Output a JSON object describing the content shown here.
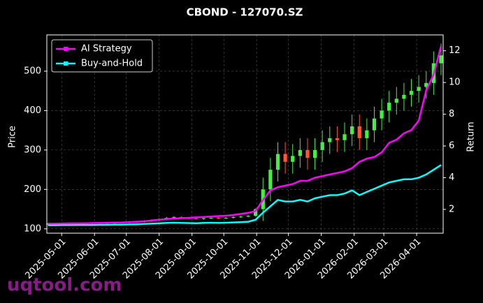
{
  "chart_data": {
    "type": "candlestick",
    "title": "CBOND - 127070.SZ",
    "ylabel": "Price",
    "y2label": "Return",
    "watermark": "uqtool.com",
    "x": [
      "2025-04-18",
      "2025-04-25",
      "2025-05-02",
      "2025-05-09",
      "2025-05-16",
      "2025-05-23",
      "2025-05-30",
      "2025-06-06",
      "2025-06-13",
      "2025-06-20",
      "2025-06-27",
      "2025-07-04",
      "2025-07-11",
      "2025-07-18",
      "2025-07-25",
      "2025-08-01",
      "2025-08-08",
      "2025-08-15",
      "2025-08-22",
      "2025-08-29",
      "2025-09-05",
      "2025-09-12",
      "2025-09-19",
      "2025-09-26",
      "2025-10-03",
      "2025-10-10",
      "2025-10-17",
      "2025-10-24",
      "2025-10-31",
      "2025-11-07",
      "2025-11-14",
      "2025-11-21",
      "2025-11-28",
      "2025-12-05",
      "2025-12-12",
      "2025-12-19",
      "2025-12-26",
      "2026-01-02",
      "2026-01-09",
      "2026-01-16",
      "2026-01-23",
      "2026-01-30",
      "2026-02-06",
      "2026-02-13",
      "2026-02-20",
      "2026-02-27",
      "2026-03-06",
      "2026-03-13",
      "2026-03-20",
      "2026-03-27",
      "2026-04-03",
      "2026-04-10",
      "2026-04-17",
      "2026-04-24"
    ],
    "open": [
      112,
      113,
      113,
      114,
      114,
      114,
      114,
      115,
      115,
      115,
      116,
      116,
      117,
      118,
      120,
      122,
      125,
      128,
      130,
      127,
      126,
      125,
      127,
      128,
      127,
      128,
      130,
      131,
      133,
      150,
      200,
      250,
      290,
      270,
      285,
      300,
      280,
      300,
      320,
      330,
      325,
      340,
      360,
      330,
      350,
      380,
      400,
      420,
      430,
      440,
      450,
      460,
      470,
      520
    ],
    "high": [
      115,
      115,
      116,
      116,
      116,
      116,
      117,
      117,
      117,
      118,
      118,
      119,
      120,
      122,
      124,
      127,
      130,
      132,
      132,
      129,
      128,
      129,
      130,
      130,
      130,
      132,
      133,
      135,
      152,
      230,
      280,
      320,
      320,
      315,
      330,
      330,
      330,
      350,
      360,
      360,
      370,
      390,
      390,
      380,
      410,
      430,
      450,
      460,
      470,
      480,
      490,
      500,
      550,
      570
    ],
    "low": [
      110,
      111,
      111,
      112,
      112,
      112,
      112,
      113,
      113,
      113,
      114,
      114,
      115,
      116,
      118,
      120,
      123,
      126,
      125,
      125,
      124,
      123,
      125,
      125,
      125,
      126,
      128,
      129,
      131,
      120,
      170,
      220,
      240,
      240,
      255,
      250,
      250,
      270,
      290,
      295,
      295,
      310,
      300,
      300,
      320,
      350,
      370,
      390,
      400,
      410,
      420,
      430,
      440,
      490
    ],
    "close": [
      113,
      113,
      114,
      114,
      114,
      114,
      115,
      115,
      115,
      116,
      116,
      117,
      118,
      120,
      122,
      125,
      128,
      130,
      127,
      126,
      125,
      127,
      128,
      127,
      128,
      130,
      131,
      133,
      150,
      200,
      250,
      290,
      270,
      285,
      300,
      280,
      300,
      320,
      330,
      325,
      340,
      360,
      330,
      350,
      380,
      400,
      420,
      430,
      440,
      450,
      460,
      470,
      520,
      540
    ],
    "up_color": "#44ee44",
    "down_color": "#ff5533",
    "series": [
      {
        "name": "AI Strategy",
        "color": "#ff00ff",
        "axis": "y2",
        "values": [
          1.1,
          1.1,
          1.11,
          1.12,
          1.12,
          1.13,
          1.14,
          1.15,
          1.16,
          1.17,
          1.18,
          1.2,
          1.22,
          1.25,
          1.3,
          1.35,
          1.4,
          1.42,
          1.45,
          1.47,
          1.5,
          1.52,
          1.55,
          1.58,
          1.6,
          1.65,
          1.72,
          1.78,
          1.9,
          2.6,
          3.2,
          3.4,
          3.5,
          3.6,
          3.8,
          3.8,
          4.0,
          4.1,
          4.2,
          4.3,
          4.4,
          4.6,
          5.0,
          5.2,
          5.3,
          5.6,
          6.2,
          6.4,
          6.8,
          7.0,
          7.6,
          9.5,
          10.5,
          12.3
        ]
      },
      {
        "name": "Buy-and-Hold",
        "color": "#00ffff",
        "axis": "y2",
        "values": [
          1.0,
          1.0,
          1.01,
          1.01,
          1.02,
          1.02,
          1.02,
          1.03,
          1.03,
          1.04,
          1.04,
          1.05,
          1.06,
          1.08,
          1.1,
          1.12,
          1.15,
          1.16,
          1.15,
          1.14,
          1.13,
          1.15,
          1.16,
          1.15,
          1.16,
          1.18,
          1.2,
          1.22,
          1.35,
          1.8,
          2.2,
          2.6,
          2.5,
          2.5,
          2.6,
          2.5,
          2.7,
          2.8,
          2.9,
          2.9,
          3.0,
          3.2,
          2.9,
          3.1,
          3.3,
          3.5,
          3.7,
          3.8,
          3.9,
          3.9,
          4.0,
          4.2,
          4.5,
          4.8
        ]
      }
    ],
    "xlim": [
      "2025-04-17",
      "2026-04-26"
    ],
    "xticks": [
      "2025-05-01",
      "2025-06-01",
      "2025-07-01",
      "2025-08-01",
      "2025-09-01",
      "2025-10-01",
      "2025-11-01",
      "2025-12-01",
      "2026-01-01",
      "2026-02-01",
      "2026-03-01",
      "2026-04-01"
    ],
    "ylim": [
      89,
      592
    ],
    "yticks": [
      100,
      200,
      300,
      400,
      500
    ],
    "y2lim": [
      0.5,
      13.0
    ],
    "y2ticks": [
      2,
      4,
      6,
      8,
      10,
      12
    ],
    "grid": true,
    "legend": "upper left"
  }
}
